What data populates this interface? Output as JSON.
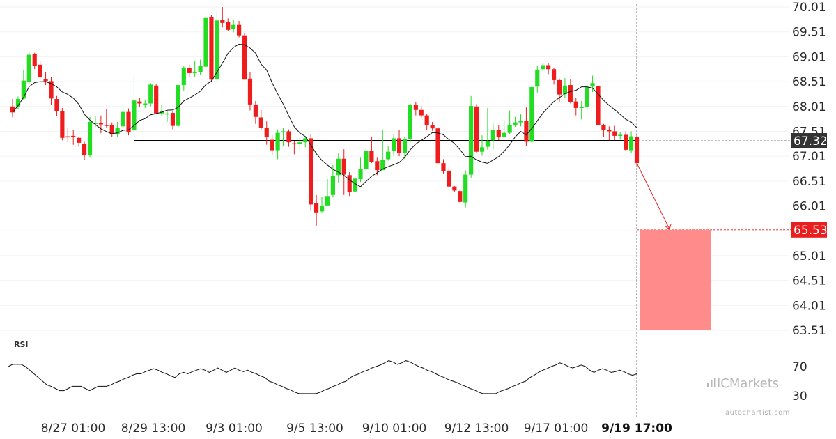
{
  "chart_data": {
    "type": "candlestick",
    "yaxis_ticks": [
      "70.01",
      "69.51",
      "69.01",
      "68.51",
      "68.01",
      "67.51",
      "67.01",
      "66.51",
      "66.01",
      "65.51",
      "65.01",
      "64.51",
      "64.01",
      "63.51"
    ],
    "ylim": [
      63.51,
      70.01
    ],
    "xaxis_labels": [
      "8/27 01:00",
      "8/29 13:00",
      "9/3 01:00",
      "9/5 13:00",
      "9/10 01:00",
      "9/12 13:00",
      "9/17 01:00",
      "9/19 17:00"
    ],
    "last_price_label": "67.32",
    "target_price_label": "65.53",
    "support_level": 67.32,
    "target_level": 65.53,
    "target_zone": [
      63.51,
      65.53
    ],
    "candles": [
      [
        68.01,
        67.89,
        68.16,
        67.79
      ],
      [
        68.01,
        68.16,
        68.21,
        67.95
      ],
      [
        68.17,
        68.53,
        68.75,
        68.15
      ],
      [
        68.51,
        69.05,
        69.1,
        68.45
      ],
      [
        69.07,
        68.82,
        69.09,
        68.76
      ],
      [
        68.85,
        68.6,
        68.93,
        68.55
      ],
      [
        68.56,
        68.52,
        68.7,
        68.44
      ],
      [
        68.52,
        68.17,
        68.6,
        68.05
      ],
      [
        68.16,
        67.91,
        68.22,
        67.82
      ],
      [
        67.92,
        67.38,
        67.98,
        67.33
      ],
      [
        67.41,
        67.39,
        67.59,
        67.29
      ],
      [
        67.42,
        67.41,
        67.54,
        67.24
      ],
      [
        67.38,
        67.28,
        67.4,
        67.2
      ],
      [
        67.25,
        67.03,
        67.3,
        66.94
      ],
      [
        67.04,
        67.7,
        67.8,
        66.98
      ],
      [
        67.66,
        67.68,
        67.82,
        67.6
      ],
      [
        67.68,
        67.65,
        67.83,
        67.47
      ],
      [
        67.64,
        67.62,
        67.95,
        67.59
      ],
      [
        67.64,
        67.46,
        67.69,
        67.4
      ],
      [
        67.45,
        67.58,
        67.7,
        67.4
      ],
      [
        67.61,
        67.9,
        68.02,
        67.55
      ],
      [
        67.9,
        67.5,
        67.97,
        67.43
      ],
      [
        67.53,
        68.13,
        68.63,
        67.47
      ],
      [
        68.11,
        68.07,
        68.19,
        68.0
      ],
      [
        68.07,
        68.07,
        68.15,
        67.98
      ],
      [
        68.07,
        68.45,
        68.48,
        68.01
      ],
      [
        68.43,
        67.87,
        68.47,
        67.87
      ],
      [
        67.87,
        67.91,
        68.04,
        67.81
      ],
      [
        67.87,
        67.87,
        67.92,
        67.7
      ],
      [
        67.88,
        67.62,
        67.92,
        67.55
      ],
      [
        67.62,
        68.44,
        68.44,
        67.6
      ],
      [
        68.44,
        68.79,
        68.82,
        68.33
      ],
      [
        68.79,
        68.68,
        68.85,
        68.59
      ],
      [
        68.68,
        68.71,
        68.92,
        68.61
      ],
      [
        68.7,
        68.82,
        68.95,
        68.65
      ],
      [
        68.81,
        69.79,
        69.8,
        68.78
      ],
      [
        69.8,
        68.55,
        69.85,
        68.52
      ],
      [
        68.56,
        69.74,
        69.92,
        68.53
      ],
      [
        69.75,
        69.69,
        70.01,
        69.6
      ],
      [
        69.71,
        69.55,
        69.78,
        69.52
      ],
      [
        69.56,
        69.65,
        69.76,
        69.5
      ],
      [
        69.65,
        69.44,
        69.73,
        69.4
      ],
      [
        69.44,
        68.55,
        69.49,
        68.55
      ],
      [
        68.57,
        68.05,
        68.7,
        67.93
      ],
      [
        68.05,
        67.8,
        68.12,
        67.66
      ],
      [
        67.79,
        67.58,
        67.94,
        67.53
      ],
      [
        67.58,
        67.39,
        67.71,
        67.24
      ],
      [
        67.34,
        67.13,
        67.44,
        67.03
      ],
      [
        67.13,
        67.48,
        67.55,
        66.95
      ],
      [
        67.49,
        67.51,
        67.58,
        67.21
      ],
      [
        67.51,
        67.29,
        67.55,
        67.2
      ],
      [
        67.27,
        67.25,
        67.31,
        67.05
      ],
      [
        67.25,
        67.29,
        67.4,
        67.14
      ],
      [
        67.29,
        67.37,
        67.41,
        67.19
      ],
      [
        67.37,
        66.04,
        67.46,
        65.91
      ],
      [
        66.06,
        65.88,
        66.23,
        65.6
      ],
      [
        65.9,
        66.01,
        66.19,
        65.88
      ],
      [
        66.02,
        66.21,
        66.55,
        66.12
      ],
      [
        66.23,
        66.62,
        66.83,
        66.18
      ],
      [
        66.63,
        66.96,
        67.07,
        66.48
      ],
      [
        66.96,
        66.64,
        67.15,
        66.23
      ],
      [
        66.63,
        66.29,
        66.69,
        66.21
      ],
      [
        66.3,
        66.56,
        66.62,
        66.28
      ],
      [
        66.55,
        66.76,
        66.98,
        66.49
      ],
      [
        66.76,
        67.11,
        67.2,
        66.67
      ],
      [
        67.12,
        66.9,
        67.39,
        66.87
      ],
      [
        66.91,
        66.73,
        66.98,
        66.63
      ],
      [
        66.73,
        66.94,
        67.53,
        66.89
      ],
      [
        66.95,
        67.1,
        67.21,
        66.92
      ],
      [
        67.11,
        67.37,
        67.46,
        67.02
      ],
      [
        67.37,
        67.07,
        67.54,
        67.01
      ],
      [
        67.07,
        67.36,
        67.4,
        66.95
      ],
      [
        67.36,
        68.05,
        68.06,
        67.29
      ],
      [
        68.04,
        67.94,
        68.1,
        67.83
      ],
      [
        67.94,
        67.83,
        68.02,
        67.77
      ],
      [
        67.83,
        67.63,
        67.86,
        67.53
      ],
      [
        67.63,
        67.57,
        67.7,
        67.52
      ],
      [
        67.57,
        66.87,
        67.62,
        66.84
      ],
      [
        66.87,
        66.71,
        66.95,
        66.65
      ],
      [
        66.72,
        66.4,
        66.81,
        66.33
      ],
      [
        66.4,
        66.32,
        66.41,
        66.29
      ],
      [
        66.31,
        66.09,
        66.34,
        66.06
      ],
      [
        66.08,
        66.64,
        66.73,
        65.98
      ],
      [
        66.64,
        68.02,
        68.22,
        66.58
      ],
      [
        68.01,
        67.1,
        68.06,
        67.08
      ],
      [
        67.1,
        67.19,
        67.43,
        67.02
      ],
      [
        67.2,
        67.32,
        67.98,
        67.14
      ],
      [
        67.33,
        67.54,
        67.67,
        67.15
      ],
      [
        67.54,
        67.39,
        67.64,
        67.33
      ],
      [
        67.4,
        67.48,
        67.73,
        67.4
      ],
      [
        67.48,
        67.63,
        67.93,
        67.46
      ],
      [
        67.64,
        67.69,
        67.8,
        67.6
      ],
      [
        67.69,
        67.72,
        67.85,
        67.61
      ],
      [
        67.72,
        67.3,
        67.99,
        67.22
      ],
      [
        67.3,
        68.4,
        68.43,
        67.28
      ],
      [
        68.41,
        68.75,
        68.83,
        68.29
      ],
      [
        68.76,
        68.84,
        68.88,
        68.72
      ],
      [
        68.84,
        68.76,
        68.89,
        68.66
      ],
      [
        68.76,
        68.54,
        68.78,
        68.45
      ],
      [
        68.54,
        68.25,
        68.57,
        68.11
      ],
      [
        68.26,
        68.43,
        68.58,
        68.18
      ],
      [
        68.44,
        68.1,
        68.56,
        68.07
      ],
      [
        68.11,
        67.98,
        68.18,
        67.83
      ],
      [
        67.98,
        68.0,
        68.12,
        67.75
      ],
      [
        68.0,
        68.4,
        68.45,
        67.93
      ],
      [
        68.41,
        68.48,
        68.63,
        68.3
      ],
      [
        68.42,
        67.63,
        68.43,
        67.61
      ],
      [
        67.63,
        67.53,
        67.66,
        67.4
      ],
      [
        67.54,
        67.51,
        67.61,
        67.33
      ],
      [
        67.51,
        67.42,
        67.62,
        67.33
      ],
      [
        67.43,
        67.44,
        67.5,
        67.34
      ],
      [
        67.44,
        67.14,
        67.51,
        67.11
      ],
      [
        67.13,
        67.41,
        67.51,
        67.08
      ],
      [
        67.4,
        66.87,
        67.44,
        66.86
      ]
    ],
    "rsi": {
      "label": "RSI",
      "ticks": [
        "70",
        "30"
      ],
      "values": [
        70,
        73,
        73,
        73,
        70,
        65,
        60,
        55,
        50,
        45,
        43,
        40,
        37,
        37,
        40,
        43,
        43,
        43,
        40,
        37,
        40,
        43,
        43,
        43,
        45,
        48,
        50,
        53,
        55,
        58,
        60,
        60,
        63,
        65,
        67,
        65,
        62,
        60,
        57,
        55,
        60,
        62,
        60,
        63,
        65,
        67,
        65,
        62,
        65,
        68,
        65,
        62,
        65,
        68,
        65,
        63,
        65,
        62,
        60,
        57,
        55,
        50,
        48,
        45,
        43,
        40,
        38,
        35,
        33,
        33,
        33,
        33,
        33,
        35,
        38,
        40,
        43,
        45,
        48,
        50,
        55,
        58,
        60,
        63,
        65,
        68,
        70,
        72,
        75,
        78,
        76,
        73,
        75,
        78,
        76,
        73,
        70,
        68,
        65,
        63,
        60,
        57,
        55,
        52,
        50,
        48,
        45,
        43,
        40,
        38,
        35,
        33,
        33,
        33,
        33,
        36,
        38,
        40,
        43,
        45,
        48,
        50,
        55,
        58,
        62,
        65,
        67,
        70,
        72,
        75,
        73,
        70,
        68,
        70,
        72,
        70,
        65,
        62,
        65,
        67,
        65,
        62,
        63,
        65,
        63,
        60,
        58,
        60
      ]
    }
  },
  "branding": {
    "broker_logo_text": "ICMarkets",
    "credit": "autochartist.com"
  },
  "colors": {
    "bull": "#22dd22",
    "bear": "#ee1c1c",
    "support_line": "#000000",
    "target_zone": "#ff8b8b",
    "badge_last": "#333333",
    "badge_target": "#e91e1e",
    "sma": "#111111",
    "rsi_line": "#111111"
  }
}
